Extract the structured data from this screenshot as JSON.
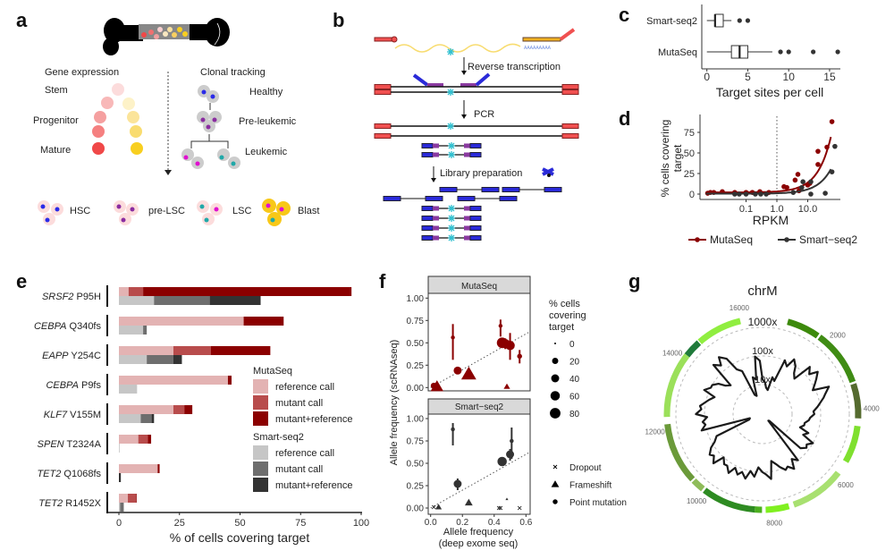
{
  "panel_labels": {
    "a": "a",
    "b": "b",
    "c": "c",
    "d": "d",
    "e": "e",
    "f": "f",
    "g": "g"
  },
  "panel_a": {
    "gene_expression": "Gene expression",
    "clonal_tracking": "Clonal tracking",
    "stages": [
      "Stem",
      "Progenitor",
      "Mature"
    ],
    "clones": [
      "Healthy",
      "Pre-leukemic",
      "Leukemic"
    ],
    "cell_types": [
      "HSC",
      "pre-LSC",
      "LSC",
      "Blast"
    ],
    "colors": {
      "stem_red": "#f04848",
      "stem_yellow": "#f8cf20",
      "nucleus_blue": "#2a2ae8",
      "nucleus_purple": "#8a2ca0",
      "nucleus_magenta": "#e010d0",
      "nucleus_teal": "#20a8a8"
    }
  },
  "panel_b": {
    "steps": [
      "Reverse transcription",
      "PCR",
      "Library preparation"
    ],
    "polya": "AAAAAAAAA"
  },
  "chart_data": [
    {
      "type": "box",
      "xlabel": "Target sites per cell",
      "xlim": [
        0,
        16
      ],
      "xticks": [
        0,
        5,
        10,
        15
      ],
      "series": [
        {
          "name": "Smart-seq2",
          "whisker": [
            0,
            3
          ],
          "q1": 1,
          "median": 1,
          "q3": 2,
          "outliers": [
            4,
            5
          ]
        },
        {
          "name": "MutaSeq",
          "whisker": [
            0,
            8
          ],
          "q1": 3,
          "median": 4,
          "q3": 5,
          "outliers": [
            9,
            10,
            13,
            16
          ]
        }
      ]
    },
    {
      "type": "scatter",
      "xlabel": "RPKM",
      "ylabel_lines": [
        "% cells covering",
        "target"
      ],
      "xscale": "log",
      "xticks": [
        0.1,
        1.0,
        10.0
      ],
      "xtick_labels": [
        "0.1",
        "1.0",
        "10.0"
      ],
      "yticks": [
        0,
        25,
        50,
        75
      ],
      "vline": 1.0,
      "legend_position": "bottom",
      "series": [
        {
          "name": "MutaSeq",
          "color": "#8b0000",
          "points": [
            [
              0.0057,
              1
            ],
            [
              0.007,
              2
            ],
            [
              0.009,
              2
            ],
            [
              0.017,
              3
            ],
            [
              0.043,
              2
            ],
            [
              0.1,
              2
            ],
            [
              0.16,
              2
            ],
            [
              0.28,
              3
            ],
            [
              0.55,
              2
            ],
            [
              1.7,
              9
            ],
            [
              2.1,
              8
            ],
            [
              3.9,
              17
            ],
            [
              4.8,
              24
            ],
            [
              5.2,
              4
            ],
            [
              10,
              11
            ],
            [
              11.7,
              13
            ],
            [
              21.5,
              52
            ],
            [
              21.5,
              36
            ],
            [
              42,
              57
            ],
            [
              61,
              88
            ]
          ]
        },
        {
          "name": "Smart−seq2",
          "color": "#333333",
          "points": [
            [
              0.043,
              0
            ],
            [
              0.06,
              0
            ],
            [
              0.1,
              0
            ],
            [
              0.2,
              0
            ],
            [
              0.3,
              0
            ],
            [
              0.45,
              0
            ],
            [
              3.4,
              2
            ],
            [
              6.4,
              8
            ],
            [
              7,
              15
            ],
            [
              12.6,
              15
            ],
            [
              12.6,
              0
            ],
            [
              37,
              1
            ],
            [
              61,
              27
            ],
            [
              76,
              58
            ]
          ]
        }
      ]
    },
    {
      "type": "bar",
      "orientation": "horizontal",
      "stacked": true,
      "xlabel": "% of cells covering target",
      "xlim": [
        0,
        100
      ],
      "xticks": [
        0,
        25,
        50,
        75,
        100
      ],
      "categories": [
        {
          "gene": "SRSF2",
          "variant": "P95H"
        },
        {
          "gene": "CEBPA",
          "variant": "Q340fs"
        },
        {
          "gene": "EAPP",
          "variant": "Y254C"
        },
        {
          "gene": "CEBPA",
          "variant": "P9fs"
        },
        {
          "gene": "KLF7",
          "variant": "V155M"
        },
        {
          "gene": "SPEN",
          "variant": "T2324A"
        },
        {
          "gene": "TET2",
          "variant": "Q1068fs"
        },
        {
          "gene": "TET2",
          "variant": "R1452X"
        }
      ],
      "stack_labels": [
        "reference call",
        "mutant call",
        "mutant+reference"
      ],
      "groups": [
        {
          "name": "MutaSeq",
          "colors": [
            "#e3b3b3",
            "#b84c4c",
            "#8b0000"
          ],
          "values": [
            [
              4,
              6,
              86
            ],
            [
              51.5,
              0,
              16.5
            ],
            [
              22.5,
              15.5,
              24.5
            ],
            [
              45,
              0,
              1.5
            ],
            [
              22.5,
              4.5,
              3.3
            ],
            [
              8,
              4,
              1.3
            ],
            [
              16,
              0,
              0.8
            ],
            [
              3.7,
              3.3,
              0.3
            ]
          ]
        },
        {
          "name": "Smart-seq2",
          "colors": [
            "#c6c6c6",
            "#6e6e6e",
            "#333333"
          ],
          "values": [
            [
              14.5,
              23,
              21
            ],
            [
              10,
              1.5,
              0
            ],
            [
              11.5,
              11,
              3.5
            ],
            [
              7.5,
              0,
              0
            ],
            [
              9,
              4.5,
              1
            ],
            [
              0.3,
              0,
              0
            ],
            [
              0,
              0,
              0.8
            ],
            [
              0.5,
              1.5,
              0
            ]
          ]
        }
      ],
      "legend_position": "right"
    },
    {
      "type": "scatter",
      "xlabel": "Allele frequency",
      "xlabel2": "(deep exome seq)",
      "ylabel": "Allele frequency (scRNAseq)",
      "xlim": [
        0,
        0.6
      ],
      "xticks": [
        0.0,
        0.2,
        0.4,
        0.6
      ],
      "xtick_labels": [
        "0.0",
        "0.2",
        "0.4",
        "0.6"
      ],
      "yticks": [
        0,
        0.25,
        0.5,
        0.75,
        1.0
      ],
      "ytick_labels": [
        "0.00",
        "0.25",
        "0.50",
        "0.75",
        "1.00"
      ],
      "reference_line": "y = x",
      "facets": [
        {
          "title": "MutaSeq",
          "color": "#8b0000",
          "points": [
            {
              "x": 0.14,
              "y": 0.56,
              "size": 5,
              "shape": "point",
              "err": [
                0.31,
                0.71
              ]
            },
            {
              "x": 0.44,
              "y": 0.69,
              "size": 5,
              "shape": "point",
              "err": [
                0.57,
                0.76
              ]
            },
            {
              "x": 0.45,
              "y": 0.5,
              "size": 80,
              "shape": "point"
            },
            {
              "x": 0.47,
              "y": 0.49,
              "size": 60,
              "shape": "point",
              "err": [
                0.43,
                0.55
              ]
            },
            {
              "x": 0.5,
              "y": 0.47,
              "size": 60,
              "shape": "point",
              "err": [
                0.31,
                0.61
              ]
            },
            {
              "x": 0.56,
              "y": 0.35,
              "size": 10,
              "shape": "point",
              "err": [
                0.27,
                0.42
              ]
            },
            {
              "x": 0.17,
              "y": 0.19,
              "size": 40,
              "shape": "point"
            },
            {
              "x": 0.02,
              "y": 0.02,
              "size": 20,
              "shape": "point"
            },
            {
              "x": 0.04,
              "y": 0.01,
              "size": 40,
              "shape": "triangle"
            },
            {
              "x": 0.24,
              "y": 0.15,
              "size": 60,
              "shape": "triangle"
            },
            {
              "x": 0.48,
              "y": 0.01,
              "size": 5,
              "shape": "triangle"
            }
          ]
        },
        {
          "title": "Smart−seq2",
          "color": "#333333",
          "points": [
            {
              "x": 0.14,
              "y": 0.88,
              "size": 5,
              "shape": "point",
              "err": [
                0.7,
                0.95
              ]
            },
            {
              "x": 0.51,
              "y": 0.75,
              "size": 5,
              "shape": "point",
              "err": [
                0.55,
                0.9
              ]
            },
            {
              "x": 0.5,
              "y": 0.6,
              "size": 40,
              "shape": "point",
              "err": [
                0.53,
                0.66
              ]
            },
            {
              "x": 0.45,
              "y": 0.52,
              "size": 60,
              "shape": "point"
            },
            {
              "x": 0.17,
              "y": 0.27,
              "size": 40,
              "shape": "point",
              "err": [
                0.2,
                0.33
              ]
            },
            {
              "x": 0.24,
              "y": 0.06,
              "size": 10,
              "shape": "triangle"
            },
            {
              "x": 0.48,
              "y": 0.1,
              "size": 0,
              "shape": "triangle"
            },
            {
              "x": 0.05,
              "y": 0.01,
              "size": 5,
              "shape": "triangle"
            },
            {
              "x": 0.02,
              "y": 0.01,
              "size": 0,
              "shape": "dropout"
            },
            {
              "x": 0.43,
              "y": 0.0,
              "size": 0,
              "shape": "dropout"
            },
            {
              "x": 0.44,
              "y": 0.0,
              "size": 0,
              "shape": "dropout"
            },
            {
              "x": 0.56,
              "y": 0.0,
              "size": 0,
              "shape": "dropout"
            }
          ]
        }
      ],
      "size_legend": {
        "title_lines": [
          "% cells",
          "covering",
          "target"
        ],
        "values": [
          0,
          20,
          40,
          60,
          80
        ]
      },
      "shape_legend": [
        {
          "shape": "dropout",
          "label": "Dropout"
        },
        {
          "shape": "triangle",
          "label": "Frameshift"
        },
        {
          "shape": "point",
          "label": "Point mutation"
        }
      ]
    },
    {
      "type": "radial",
      "title": "chrM",
      "ring_labels": [
        "10x",
        "100x",
        "1000x"
      ],
      "ring_values": [
        10,
        100,
        1000
      ],
      "position_ticks": [
        2000,
        4000,
        6000,
        8000,
        10000,
        12000,
        14000,
        16000
      ],
      "gene_segments": [
        {
          "start": 700,
          "end": 1620,
          "color": "#3d8a0c"
        },
        {
          "start": 1680,
          "end": 3240,
          "color": "#3f8c14"
        },
        {
          "start": 3300,
          "end": 4260,
          "color": "#556b2f"
        },
        {
          "start": 4470,
          "end": 5510,
          "color": "#7fe02f"
        },
        {
          "start": 5880,
          "end": 7410,
          "color": "#a8e070"
        },
        {
          "start": 7550,
          "end": 8200,
          "color": "#80f020"
        },
        {
          "start": 8300,
          "end": 8500,
          "color": "#4caf20"
        },
        {
          "start": 8500,
          "end": 10000,
          "color": "#2e8b22"
        },
        {
          "start": 10060,
          "end": 10400,
          "color": "#8fbc5a"
        },
        {
          "start": 10450,
          "end": 12150,
          "color": "#6b9a3a"
        },
        {
          "start": 12350,
          "end": 14170,
          "color": "#9be05a"
        },
        {
          "start": 14170,
          "end": 14650,
          "color": "#1f7a3a"
        },
        {
          "start": 14680,
          "end": 15950,
          "color": "#90ee40"
        }
      ],
      "coverage": [
        15,
        8,
        20,
        100,
        150,
        60,
        200,
        250,
        120,
        300,
        150,
        80,
        60,
        40,
        30,
        50,
        100,
        80,
        2,
        100,
        150,
        120,
        60,
        180,
        100,
        150,
        200,
        180,
        220,
        150,
        250,
        200,
        80,
        3,
        150,
        120,
        200,
        150,
        80,
        150,
        100,
        40,
        250,
        300,
        60,
        5,
        20,
        100
      ]
    }
  ]
}
